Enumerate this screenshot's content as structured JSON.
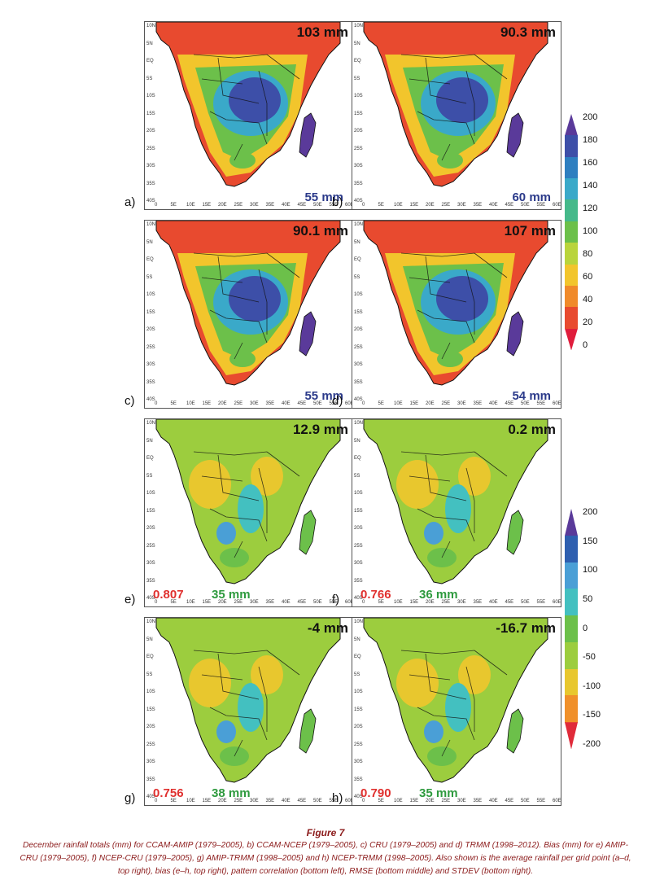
{
  "figure": {
    "title": "Figure 7",
    "caption": "December rainfall totals (mm) for CCAM-AMIP (1979–2005), b) CCAM-NCEP (1979–2005), c) CRU (1979–2005) and d) TRMM (1998–2012). Bias (mm) for e) AMIP-CRU (1979–2005), f) NCEP-CRU (1979–2005), g) AMIP-TRMM (1998–2005) and h) NCEP-TRMM (1998–2005). Also shown is the average rainfall per grid point (a–d, top right), bias (e–h, top right), pattern correlation (bottom left), RMSE (bottom middle) and STDEV (bottom right)."
  },
  "axes": {
    "lat_ticks": [
      "10N",
      "5N",
      "EQ",
      "5S",
      "10S",
      "15S",
      "20S",
      "25S",
      "30S",
      "35S",
      "40S"
    ],
    "lon_ticks": [
      "0",
      "5E",
      "10E",
      "15E",
      "20E",
      "25E",
      "30E",
      "35E",
      "40E",
      "45E",
      "50E",
      "55E",
      "60E"
    ]
  },
  "panels": [
    {
      "label": "a)",
      "scheme": "rain",
      "top_right": "103 mm",
      "bottom_right": "55 mm"
    },
    {
      "label": "b)",
      "scheme": "rain",
      "top_right": "90.3 mm",
      "bottom_right": "60 mm"
    },
    {
      "label": "c)",
      "scheme": "rain",
      "top_right": "90.1 mm",
      "bottom_right": "55 mm"
    },
    {
      "label": "d)",
      "scheme": "rain",
      "top_right": "107 mm",
      "bottom_right": "54 mm"
    },
    {
      "label": "e)",
      "scheme": "bias",
      "top_right": "12.9 mm",
      "bottom_left": "0.807",
      "bottom_middle": "35 mm"
    },
    {
      "label": "f)",
      "scheme": "bias",
      "top_right": "0.2 mm",
      "bottom_left": "0.766",
      "bottom_middle": "36 mm"
    },
    {
      "label": "g)",
      "scheme": "bias",
      "top_right": "-4 mm",
      "bottom_left": "0.756",
      "bottom_middle": "38 mm"
    },
    {
      "label": "h)",
      "scheme": "bias",
      "top_right": "-16.7 mm",
      "bottom_left": "0.790",
      "bottom_middle": "35 mm"
    }
  ],
  "colorbars": {
    "rain": {
      "labels": [
        "200",
        "180",
        "160",
        "140",
        "120",
        "100",
        "80",
        "60",
        "40",
        "20",
        "0"
      ],
      "colors": [
        "#5a3a9a",
        "#3d4fa8",
        "#2e7fc0",
        "#3aa9c9",
        "#45b98a",
        "#6cc04a",
        "#b9d43c",
        "#f2c52c",
        "#f08a2a",
        "#e84a2f",
        "#e01d3c"
      ]
    },
    "bias": {
      "labels": [
        "200",
        "150",
        "100",
        "50",
        "0",
        "-50",
        "-100",
        "-150",
        "-200"
      ],
      "colors": [
        "#5a3a9a",
        "#2e5fb0",
        "#4a9fd6",
        "#43c0c0",
        "#6cc04a",
        "#9ccd3e",
        "#e8c72e",
        "#f0902a",
        "#e02b3a"
      ]
    }
  }
}
